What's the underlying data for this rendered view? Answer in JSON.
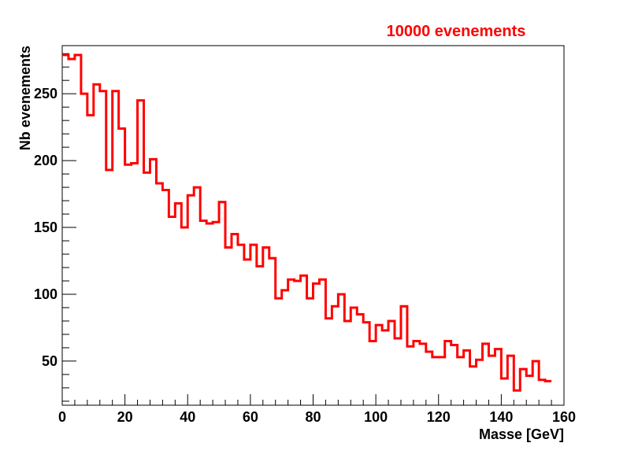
{
  "chart_data": {
    "type": "histogram",
    "title": "10000 evenements",
    "xlabel": "Masse [GeV]",
    "ylabel": "Nb evenements",
    "xlim": [
      0,
      160
    ],
    "ylim": [
      17,
      286
    ],
    "bin_width": 2,
    "x_ticks": [
      0,
      20,
      40,
      60,
      80,
      100,
      120,
      140,
      160
    ],
    "y_ticks": [
      50,
      100,
      150,
      200,
      250
    ],
    "grid": false,
    "legend": "none",
    "series": [
      {
        "color": "#ff0000",
        "bin_edges_start": 0,
        "values": [
          279,
          276,
          279,
          250,
          234,
          257,
          252,
          193,
          252,
          224,
          197,
          198,
          245,
          191,
          201,
          183,
          178,
          158,
          168,
          150,
          174,
          180,
          155,
          153,
          154,
          169,
          135,
          145,
          137,
          126,
          137,
          121,
          135,
          127,
          97,
          103,
          111,
          110,
          114,
          97,
          108,
          111,
          82,
          91,
          100,
          80,
          90,
          85,
          79,
          65,
          77,
          73,
          80,
          67,
          91,
          61,
          65,
          63,
          57,
          53,
          53,
          65,
          62,
          53,
          58,
          46,
          51,
          63,
          54,
          59,
          37,
          54,
          28,
          44,
          39,
          50,
          36,
          35
        ]
      }
    ]
  }
}
